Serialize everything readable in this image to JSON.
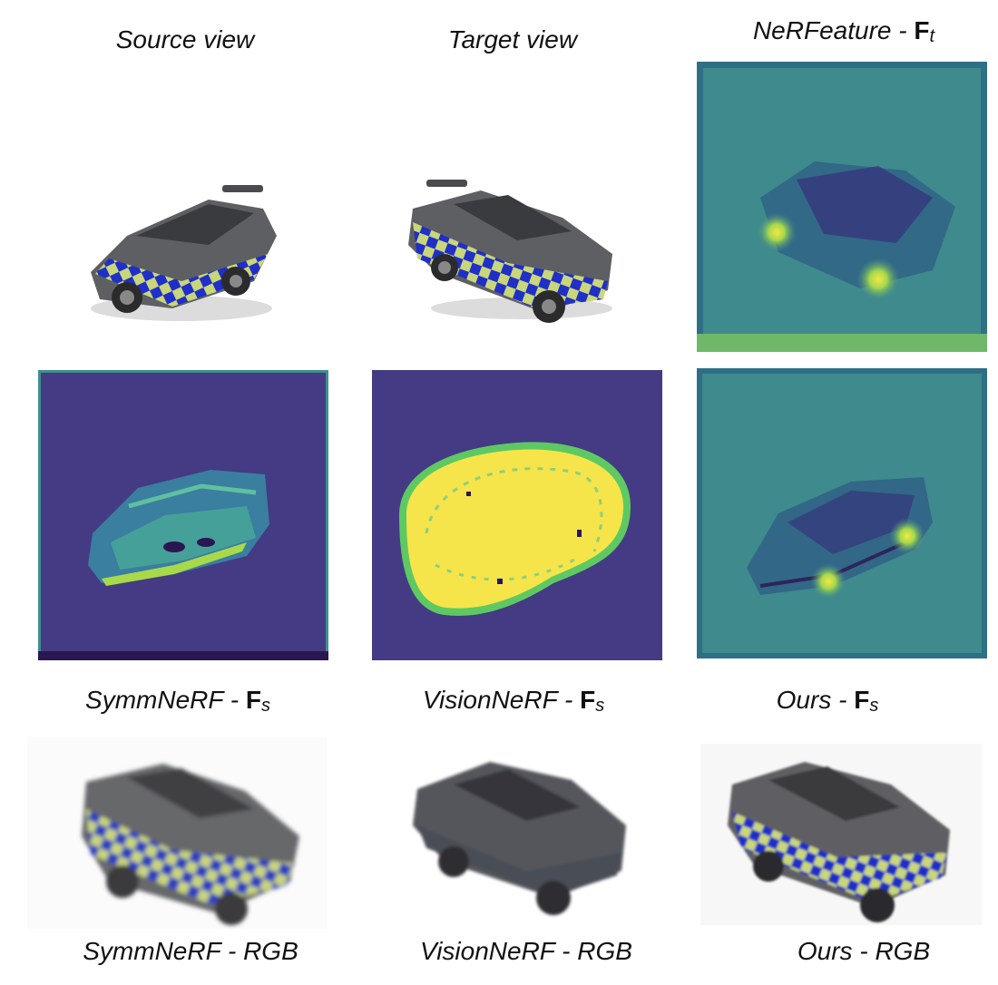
{
  "figure": {
    "labels": {
      "source_view": "Source view",
      "target_view": "Target view",
      "nerfeature_method": "NeRFeature",
      "symmnerf_method": "SymmNeRF",
      "visionnerf_method": "VisionNeRF",
      "ours_method": "Ours",
      "separator": "-",
      "feature_symbol": "F",
      "target_subscript": "t",
      "source_subscript": "s",
      "symmnerf_rgb": "SymmNeRF - RGB",
      "visionnerf_rgb": "VisionNeRF - RGB",
      "ours_rgb": "Ours - RGB"
    },
    "colors": {
      "viridis_purple": "#443b84",
      "viridis_teal": "#2a9d8f",
      "viridis_green": "#5ec962",
      "viridis_yellow": "#f5e54a",
      "feature_bg": "#3e8a8c",
      "car_gray": "#5e5f63",
      "check_blue": "#1f2fc8",
      "check_yellow": "#c9d67a"
    }
  }
}
